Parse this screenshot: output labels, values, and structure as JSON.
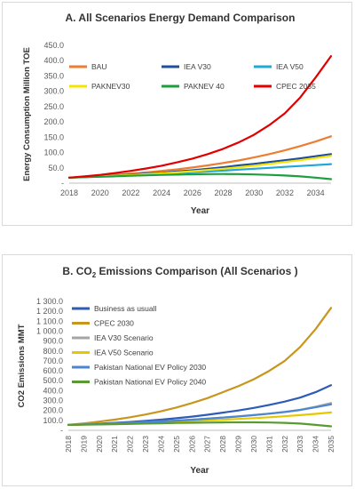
{
  "charts": [
    {
      "type": "line",
      "title": "A. All Scenarios Energy Demand Comparison",
      "xlabel": "Year",
      "ylabel": "Energy Consumption Million TOE",
      "ylim": [
        0,
        450
      ],
      "yticks": [
        0,
        50,
        100,
        150,
        200,
        250,
        300,
        350,
        400,
        450
      ],
      "ytick_labels": [
        "-",
        "50.0",
        "100.0",
        "150.0",
        "200.0",
        "250.0",
        "300.0",
        "350.0",
        "400.0",
        "450.0"
      ],
      "xlim": [
        2018,
        2035
      ],
      "xticks": [
        2018,
        2020,
        2022,
        2024,
        2026,
        2028,
        2030,
        2032,
        2034
      ],
      "xtick_labels": [
        "2018",
        "2020",
        "2022",
        "2024",
        "2026",
        "2028",
        "2030",
        "2032",
        "2034"
      ],
      "grid": false,
      "legend_position": "top-left, inside plot",
      "x": [
        2018,
        2019,
        2020,
        2021,
        2022,
        2023,
        2024,
        2025,
        2026,
        2027,
        2028,
        2029,
        2030,
        2031,
        2032,
        2033,
        2034,
        2035
      ],
      "series": [
        {
          "name": "BAU",
          "color": "#ed7d31",
          "values": [
            18,
            21,
            24,
            27,
            31,
            35,
            40,
            45,
            51,
            58,
            66,
            74,
            84,
            95,
            107,
            121,
            136,
            153
          ]
        },
        {
          "name": "IEA V30",
          "color": "#1f4e9c",
          "values": [
            18,
            20,
            22,
            25,
            28,
            31,
            34,
            38,
            42,
            47,
            52,
            58,
            63,
            69,
            75,
            81,
            88,
            95
          ]
        },
        {
          "name": "IEA V50",
          "color": "#1fa8d8",
          "values": [
            18,
            20,
            22,
            24,
            26,
            28,
            31,
            33,
            36,
            38,
            41,
            44,
            47,
            50,
            53,
            56,
            59,
            62
          ]
        },
        {
          "name": "PAKNEV30",
          "color": "#f5e400",
          "values": [
            18,
            20,
            22,
            24,
            26,
            29,
            32,
            35,
            39,
            43,
            47,
            52,
            57,
            63,
            69,
            75,
            82,
            89
          ]
        },
        {
          "name": "PAKNEV 40",
          "color": "#1f9e3e",
          "values": [
            18,
            19.5,
            21,
            22.5,
            24,
            25.5,
            27,
            28,
            29,
            29.5,
            29.8,
            29.5,
            28.5,
            27,
            25,
            22,
            18,
            13
          ]
        },
        {
          "name": "CPEC 2035",
          "color": "#e00000",
          "values": [
            18,
            22,
            27,
            33,
            40,
            48,
            57,
            68,
            80,
            95,
            112,
            133,
            158,
            190,
            228,
            280,
            345,
            415
          ]
        }
      ]
    },
    {
      "type": "line",
      "title_prefix": "B. CO",
      "title_sub": "2",
      "title_suffix": " Emissions Comparison (All Scenarios )",
      "xlabel": "Year",
      "ylabel": "CO2 Emissions MMT",
      "ylim": [
        0,
        1300
      ],
      "yticks": [
        0,
        100,
        200,
        300,
        400,
        500,
        600,
        700,
        800,
        900,
        1000,
        1100,
        1200,
        1300
      ],
      "ytick_labels": [
        "-",
        "100.0",
        "200.0",
        "300.0",
        "400.0",
        "500.0",
        "600.0",
        "700.0",
        "800.0",
        "900.0",
        "1 000.0",
        "1 100.0",
        "1 200.0",
        "1 300.0"
      ],
      "xlim": [
        2018,
        2035
      ],
      "xticks": [
        2018,
        2019,
        2020,
        2021,
        2022,
        2023,
        2024,
        2025,
        2026,
        2027,
        2028,
        2029,
        2030,
        2031,
        2032,
        2033,
        2034,
        2035
      ],
      "xtick_labels": [
        "2018",
        "2019",
        "2020",
        "2021",
        "2022",
        "2023",
        "2024",
        "2025",
        "2026",
        "2027",
        "2028",
        "2029",
        "2030",
        "2031",
        "2032",
        "2033",
        "2034",
        "2035"
      ],
      "grid": false,
      "legend_position": "top-left, inside plot",
      "x": [
        2018,
        2019,
        2020,
        2021,
        2022,
        2023,
        2024,
        2025,
        2026,
        2027,
        2028,
        2029,
        2030,
        2031,
        2032,
        2033,
        2034,
        2035
      ],
      "series": [
        {
          "name": "Business as usuall",
          "color": "#2e5bb8",
          "values": [
            55,
            60,
            67,
            75,
            84,
            95,
            108,
            122,
            138,
            157,
            178,
            200,
            226,
            256,
            290,
            330,
            385,
            455
          ]
        },
        {
          "name": "CPEC 2030",
          "color": "#c8961e",
          "values": [
            55,
            70,
            88,
            108,
            132,
            160,
            192,
            230,
            275,
            325,
            385,
            445,
            515,
            600,
            700,
            840,
            1020,
            1235
          ]
        },
        {
          "name": "IEA V30 Scenario",
          "color": "#a5a5a5",
          "values": [
            55,
            59,
            64,
            70,
            76,
            83,
            91,
            99,
            108,
            118,
            129,
            141,
            154,
            169,
            186,
            206,
            238,
            275
          ]
        },
        {
          "name": "IEA V50 Scenario",
          "color": "#e6c800",
          "values": [
            55,
            58,
            62,
            66,
            71,
            76,
            81,
            87,
            93,
            100,
            107,
            115,
            123,
            132,
            142,
            153,
            166,
            180
          ]
        },
        {
          "name": "Pakistan National EV Policy 2030",
          "color": "#4a86d4",
          "values": [
            55,
            59,
            63,
            69,
            75,
            82,
            90,
            98,
            107,
            117,
            128,
            140,
            153,
            168,
            185,
            205,
            232,
            262
          ]
        },
        {
          "name": "Pakistan National EV Policy 2040",
          "color": "#5a9a32",
          "values": [
            55,
            57,
            59,
            62,
            65,
            68,
            71,
            74,
            76,
            78,
            80,
            81,
            81,
            79,
            75,
            68,
            55,
            40
          ]
        }
      ]
    }
  ]
}
